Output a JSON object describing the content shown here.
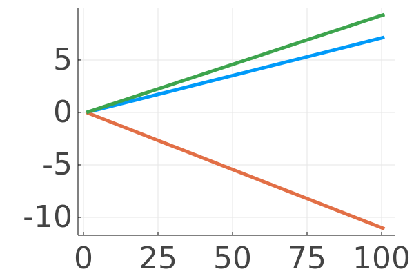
{
  "chart_data": {
    "type": "line",
    "x": [
      1,
      101
    ],
    "series": [
      {
        "color": "#009af9",
        "values": [
          0,
          7.17
        ]
      },
      {
        "color": "#e26f46",
        "values": [
          0,
          -11.1
        ]
      },
      {
        "color": "#3da44d",
        "values": [
          0,
          9.34
        ]
      }
    ],
    "xlim": [
      -1.85,
      104.4
    ],
    "xticks": [
      0,
      25,
      50,
      75,
      100
    ],
    "ylim": [
      -11.71,
      9.93
    ],
    "yticks": [
      -10,
      -5,
      0,
      5
    ],
    "grid": true
  }
}
